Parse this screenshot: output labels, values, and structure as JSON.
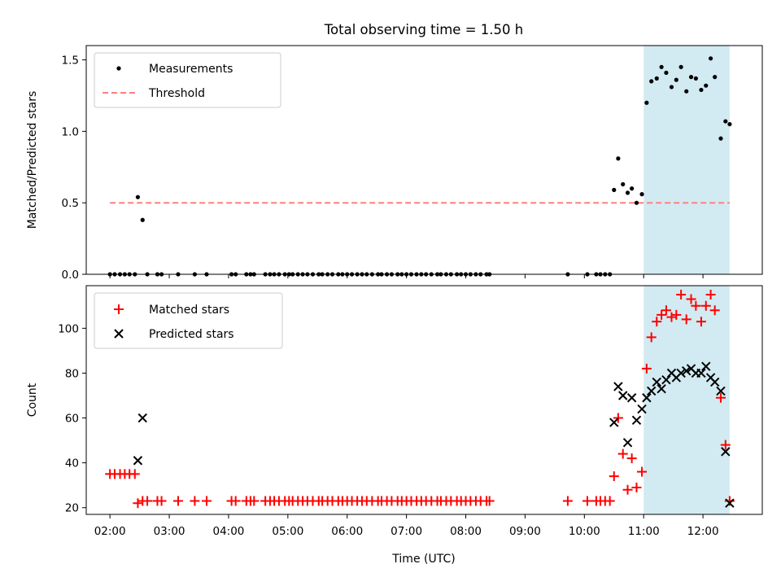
{
  "title": "Total observing time = 1.50 h",
  "colors": {
    "measurement": "#000000",
    "threshold": "#ff7f7f",
    "matched": "#ff0000",
    "predicted": "#000000",
    "shade": "#add8e6"
  },
  "chart_data": [
    {
      "type": "scatter",
      "panel": "top",
      "ylabel": "Matched/Predicted stars",
      "xlim": [
        1.6,
        13.0
      ],
      "ylim": [
        0,
        1.6
      ],
      "yticks": [
        0.0,
        0.5,
        1.0,
        1.5
      ],
      "ytick_labels": [
        "0.0",
        "0.5",
        "1.0",
        "1.5"
      ],
      "legend_position": "top-left",
      "shaded_span": [
        11.0,
        12.45
      ],
      "threshold": {
        "name": "Threshold",
        "value": 0.5,
        "x_range": [
          2.0,
          12.45
        ],
        "style": "dashed"
      },
      "series": [
        {
          "name": "Measurements",
          "marker": "dot",
          "x": [
            2.0,
            2.08,
            2.17,
            2.25,
            2.33,
            2.42,
            2.47,
            2.55,
            2.63,
            2.8,
            2.87,
            3.15,
            3.43,
            3.63,
            4.05,
            4.12,
            4.3,
            4.37,
            4.43,
            4.62,
            4.7,
            4.77,
            4.85,
            4.95,
            5.02,
            5.08,
            5.17,
            5.25,
            5.33,
            5.42,
            5.52,
            5.58,
            5.67,
            5.75,
            5.85,
            5.92,
            6.0,
            6.08,
            6.17,
            6.25,
            6.33,
            6.42,
            6.52,
            6.58,
            6.67,
            6.75,
            6.85,
            6.92,
            7.0,
            7.08,
            7.17,
            7.25,
            7.33,
            7.42,
            7.52,
            7.58,
            7.67,
            7.75,
            7.85,
            7.92,
            8.0,
            8.08,
            8.17,
            8.25,
            8.35,
            8.4,
            9.72,
            10.05,
            10.2,
            10.27,
            10.35,
            10.43,
            10.5,
            10.57,
            10.65,
            10.73,
            10.8,
            10.88,
            10.97,
            11.05,
            11.13,
            11.22,
            11.3,
            11.38,
            11.47,
            11.55,
            11.63,
            11.72,
            11.8,
            11.88,
            11.97,
            12.05,
            12.13,
            12.2,
            12.3,
            12.38,
            12.45
          ],
          "y": [
            0,
            0,
            0,
            0,
            0,
            0,
            0.54,
            0.38,
            0,
            0,
            0,
            0,
            0,
            0,
            0,
            0,
            0,
            0,
            0,
            0,
            0,
            0,
            0,
            0,
            0,
            0,
            0,
            0,
            0,
            0,
            0,
            0,
            0,
            0,
            0,
            0,
            0,
            0,
            0,
            0,
            0,
            0,
            0,
            0,
            0,
            0,
            0,
            0,
            0,
            0,
            0,
            0,
            0,
            0,
            0,
            0,
            0,
            0,
            0,
            0,
            0,
            0,
            0,
            0,
            0,
            0,
            0,
            0,
            0,
            0,
            0,
            0,
            0.59,
            0.81,
            0.63,
            0.57,
            0.6,
            0.5,
            0.56,
            1.2,
            1.35,
            1.37,
            1.45,
            1.41,
            1.31,
            1.36,
            1.45,
            1.28,
            1.38,
            1.37,
            1.29,
            1.32,
            1.51,
            1.38,
            0.95,
            1.07,
            1.05
          ]
        }
      ]
    },
    {
      "type": "scatter",
      "panel": "bottom",
      "xlabel": "Time (UTC)",
      "ylabel": "Count",
      "xlim": [
        1.6,
        13.0
      ],
      "ylim": [
        17,
        119
      ],
      "yticks": [
        20,
        40,
        60,
        80,
        100
      ],
      "ytick_labels": [
        "20",
        "40",
        "60",
        "80",
        "100"
      ],
      "xticks": [
        2,
        3,
        4,
        5,
        6,
        7,
        8,
        9,
        10,
        11,
        12
      ],
      "xtick_labels": [
        "02:00",
        "03:00",
        "04:00",
        "05:00",
        "06:00",
        "07:00",
        "08:00",
        "09:00",
        "10:00",
        "11:00",
        "12:00"
      ],
      "legend_position": "top-left",
      "shaded_span": [
        11.0,
        12.45
      ],
      "series": [
        {
          "name": "Matched stars",
          "marker": "plus",
          "x": [
            2.0,
            2.08,
            2.17,
            2.25,
            2.33,
            2.42,
            2.47,
            2.55,
            2.63,
            2.8,
            2.87,
            3.15,
            3.43,
            3.63,
            4.05,
            4.12,
            4.3,
            4.37,
            4.43,
            4.62,
            4.7,
            4.77,
            4.85,
            4.95,
            5.02,
            5.08,
            5.17,
            5.25,
            5.33,
            5.42,
            5.52,
            5.58,
            5.67,
            5.75,
            5.85,
            5.92,
            6.0,
            6.08,
            6.17,
            6.25,
            6.33,
            6.42,
            6.52,
            6.58,
            6.67,
            6.75,
            6.85,
            6.92,
            7.0,
            7.08,
            7.17,
            7.25,
            7.33,
            7.42,
            7.52,
            7.58,
            7.67,
            7.75,
            7.85,
            7.92,
            8.0,
            8.08,
            8.17,
            8.25,
            8.35,
            8.4,
            9.72,
            10.05,
            10.2,
            10.27,
            10.35,
            10.43,
            10.5,
            10.57,
            10.65,
            10.73,
            10.8,
            10.88,
            10.97,
            11.05,
            11.13,
            11.22,
            11.3,
            11.38,
            11.47,
            11.55,
            11.63,
            11.72,
            11.8,
            11.88,
            11.97,
            12.05,
            12.13,
            12.2,
            12.3,
            12.38,
            12.45
          ],
          "y": [
            35,
            35,
            35,
            35,
            35,
            35,
            22,
            23,
            23,
            23,
            23,
            23,
            23,
            23,
            23,
            23,
            23,
            23,
            23,
            23,
            23,
            23,
            23,
            23,
            23,
            23,
            23,
            23,
            23,
            23,
            23,
            23,
            23,
            23,
            23,
            23,
            23,
            23,
            23,
            23,
            23,
            23,
            23,
            23,
            23,
            23,
            23,
            23,
            23,
            23,
            23,
            23,
            23,
            23,
            23,
            23,
            23,
            23,
            23,
            23,
            23,
            23,
            23,
            23,
            23,
            23,
            23,
            23,
            23,
            23,
            23,
            23,
            34,
            60,
            44,
            28,
            42,
            29,
            36,
            82,
            96,
            103,
            106,
            108,
            105,
            106,
            115,
            104,
            113,
            110,
            103,
            110,
            115,
            108,
            69,
            48,
            23
          ]
        },
        {
          "name": "Predicted stars",
          "marker": "x",
          "x": [
            2.47,
            2.55,
            10.5,
            10.57,
            10.65,
            10.73,
            10.8,
            10.88,
            10.97,
            11.05,
            11.13,
            11.22,
            11.3,
            11.38,
            11.47,
            11.55,
            11.63,
            11.72,
            11.8,
            11.88,
            11.97,
            12.05,
            12.13,
            12.2,
            12.3,
            12.38,
            12.45
          ],
          "y": [
            41,
            60,
            58,
            74,
            70,
            49,
            69,
            59,
            64,
            69,
            72,
            76,
            73,
            77,
            80,
            78,
            80,
            81,
            82,
            80,
            80,
            83,
            78,
            76,
            72,
            45,
            22
          ]
        }
      ]
    }
  ]
}
